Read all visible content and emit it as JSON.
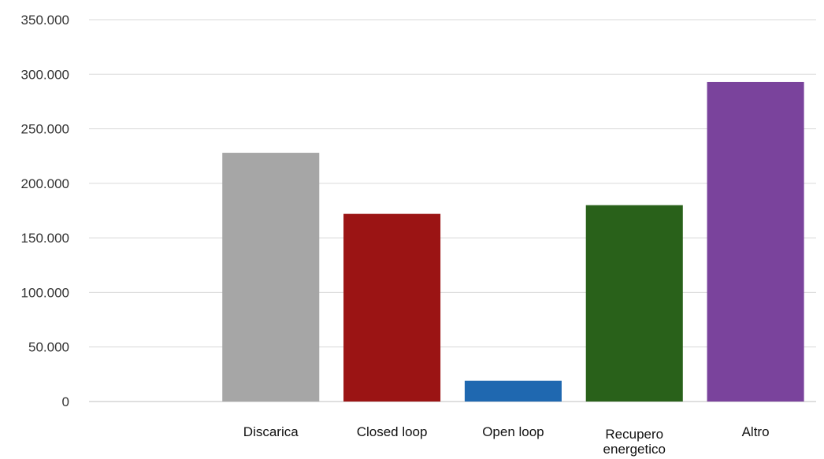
{
  "chart_data": {
    "type": "bar",
    "categories": [
      "",
      "Discarica",
      "Closed loop",
      "Open loop",
      "Recupero energetico",
      "Altro"
    ],
    "category_lines": [
      [
        ""
      ],
      [
        "Discarica"
      ],
      [
        "Closed loop"
      ],
      [
        "Open loop"
      ],
      [
        "Recupero",
        "energetico"
      ],
      [
        "Altro"
      ]
    ],
    "values": [
      0,
      228000,
      172000,
      19000,
      180000,
      293000
    ],
    "bar_colors": [
      "#a6a6a6",
      "#a6a6a6",
      "#9b1414",
      "#1f68b0",
      "#29611a",
      "#7a439c"
    ],
    "ylim": [
      0,
      350000
    ],
    "yticks": [
      0,
      50000,
      100000,
      150000,
      200000,
      250000,
      300000,
      350000
    ],
    "ytick_labels": [
      "0",
      "50.000",
      "100.000",
      "150.000",
      "200.000",
      "250.000",
      "300.000",
      "350.000"
    ],
    "grid": true,
    "title": "",
    "xlabel": "",
    "ylabel": ""
  }
}
